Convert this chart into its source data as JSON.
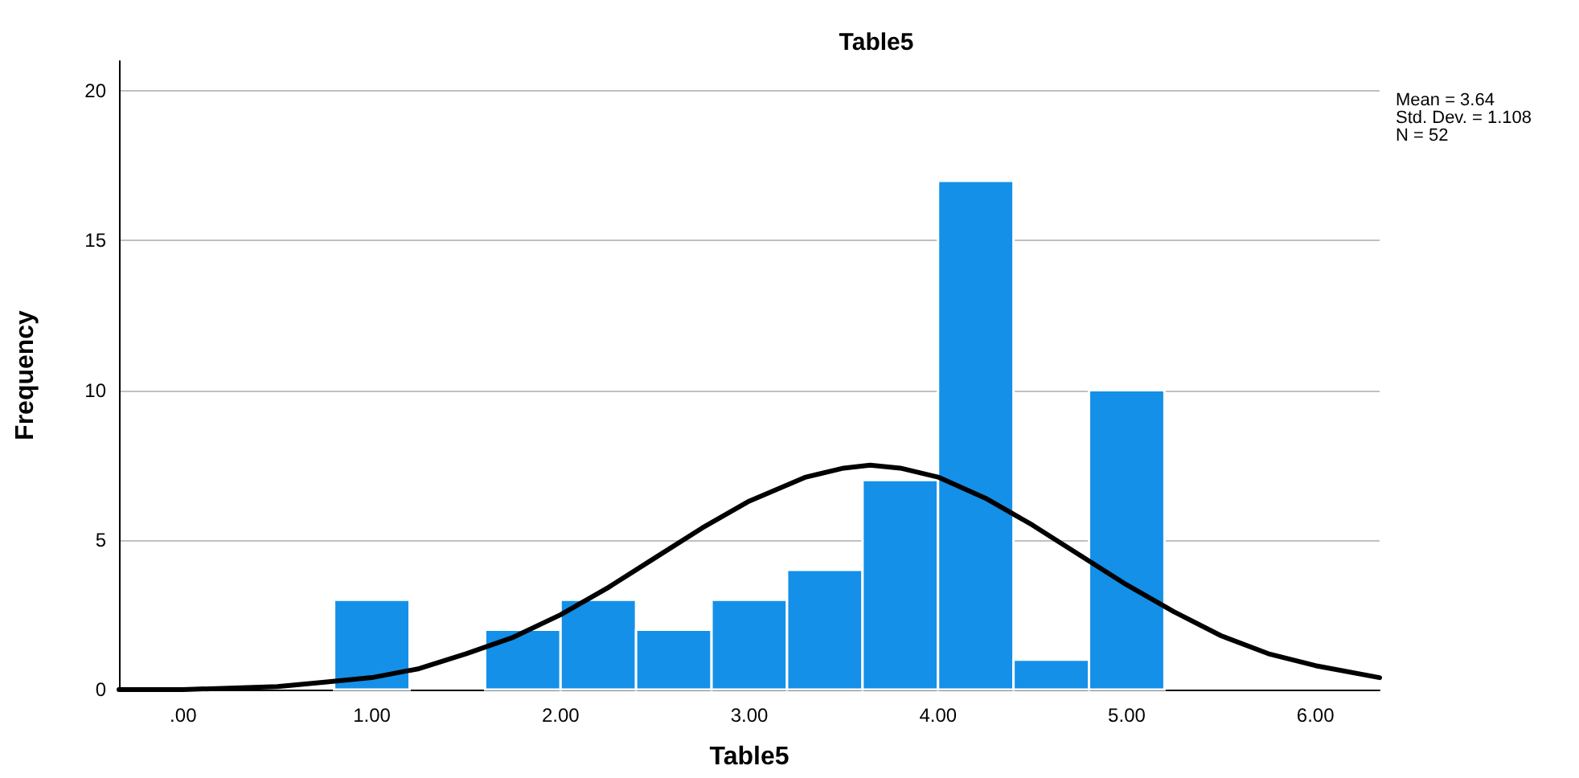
{
  "chart_data": {
    "type": "histogram",
    "title": "Table5",
    "xlabel": "Table5",
    "ylabel": "Frequency",
    "bins": [
      0.8,
      1.2,
      1.6,
      2.0,
      2.4,
      2.8,
      3.2,
      3.6,
      4.0,
      4.4,
      4.8,
      5.2
    ],
    "series": [
      {
        "color": "#1490e8",
        "values": [
          3,
          0,
          2,
          3,
          2,
          3,
          4,
          7,
          17,
          1,
          10
        ]
      },
      {
        "type": "line",
        "color": "#000000",
        "x": [
          -0.34,
          0,
          0.5,
          0.75,
          1,
          1.25,
          1.5,
          1.75,
          2,
          2.25,
          2.5,
          2.75,
          3,
          3.3,
          3.5,
          3.64,
          3.8,
          4,
          4.25,
          4.5,
          4.75,
          5,
          5.25,
          5.5,
          5.75,
          6,
          6.34
        ],
        "values": [
          0.0,
          0.0,
          0.1,
          0.25,
          0.4,
          0.7,
          1.2,
          1.75,
          2.5,
          3.4,
          4.4,
          5.4,
          6.3,
          7.1,
          7.4,
          7.5,
          7.4,
          7.1,
          6.4,
          5.5,
          4.5,
          3.5,
          2.6,
          1.8,
          1.2,
          0.8,
          0.4
        ]
      }
    ],
    "xlim": [
      -0.34,
      6.34
    ],
    "xticks": [
      {
        "value": 0,
        "label": ".00"
      },
      {
        "value": 1,
        "label": "1.00"
      },
      {
        "value": 2,
        "label": "2.00"
      },
      {
        "value": 3,
        "label": "3.00"
      },
      {
        "value": 4,
        "label": "4.00"
      },
      {
        "value": 5,
        "label": "5.00"
      },
      {
        "value": 6,
        "label": "6.00"
      }
    ],
    "ylim": [
      0,
      21
    ],
    "yticks": [
      0,
      5,
      10,
      15,
      20
    ],
    "grid": "y",
    "marker": "none",
    "line_style": "solid",
    "annotations": [
      "Mean = 3.64",
      "Std. Dev. = 1.108",
      "N = 52"
    ]
  }
}
